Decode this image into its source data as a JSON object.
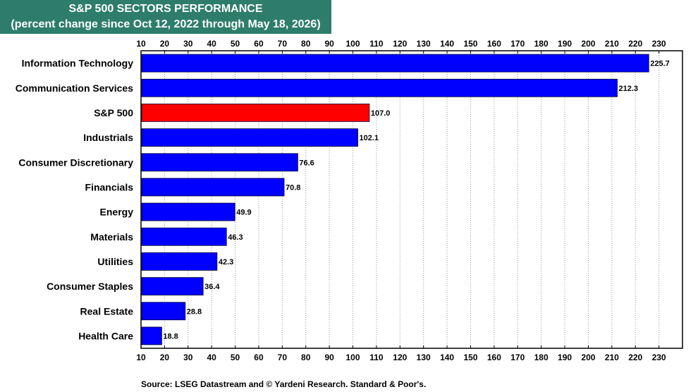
{
  "title": {
    "line1": "S&P 500 SECTORS PERFORMANCE",
    "line2": "(percent change since Oct 12, 2022 through May 18, 2026)"
  },
  "source": "Source: LSEG Datastream and © Yardeni Research. Standard & Poor's.",
  "chart_data": {
    "type": "bar",
    "orientation": "horizontal",
    "categories": [
      "Information Technology",
      "Communication Services",
      "S&P 500",
      "Industrials",
      "Consumer Discretionary",
      "Financials",
      "Energy",
      "Materials",
      "Utilities",
      "Consumer Staples",
      "Real Estate",
      "Health Care"
    ],
    "values": [
      225.7,
      212.3,
      107.0,
      102.1,
      76.6,
      70.8,
      49.9,
      46.3,
      42.3,
      36.4,
      28.8,
      18.8
    ],
    "value_labels": [
      "225.7",
      "212.3",
      "107.0",
      "102.1",
      "76.6",
      "70.8",
      "49.9",
      "46.3",
      "42.3",
      "36.4",
      "28.8",
      "18.8"
    ],
    "highlight_category": "S&P 500",
    "xlim": [
      10,
      240
    ],
    "ticks": [
      10,
      20,
      30,
      40,
      50,
      60,
      70,
      80,
      90,
      100,
      110,
      120,
      130,
      140,
      150,
      160,
      170,
      180,
      190,
      200,
      210,
      220,
      230
    ],
    "grid": true,
    "tick_labels_position": "top-and-bottom",
    "colors": {
      "bar": "#0000ff",
      "highlight_bar": "#ff0000",
      "grid": "#999999",
      "title_bg": "#2e7d6b",
      "title_text": "#ffffff"
    }
  }
}
